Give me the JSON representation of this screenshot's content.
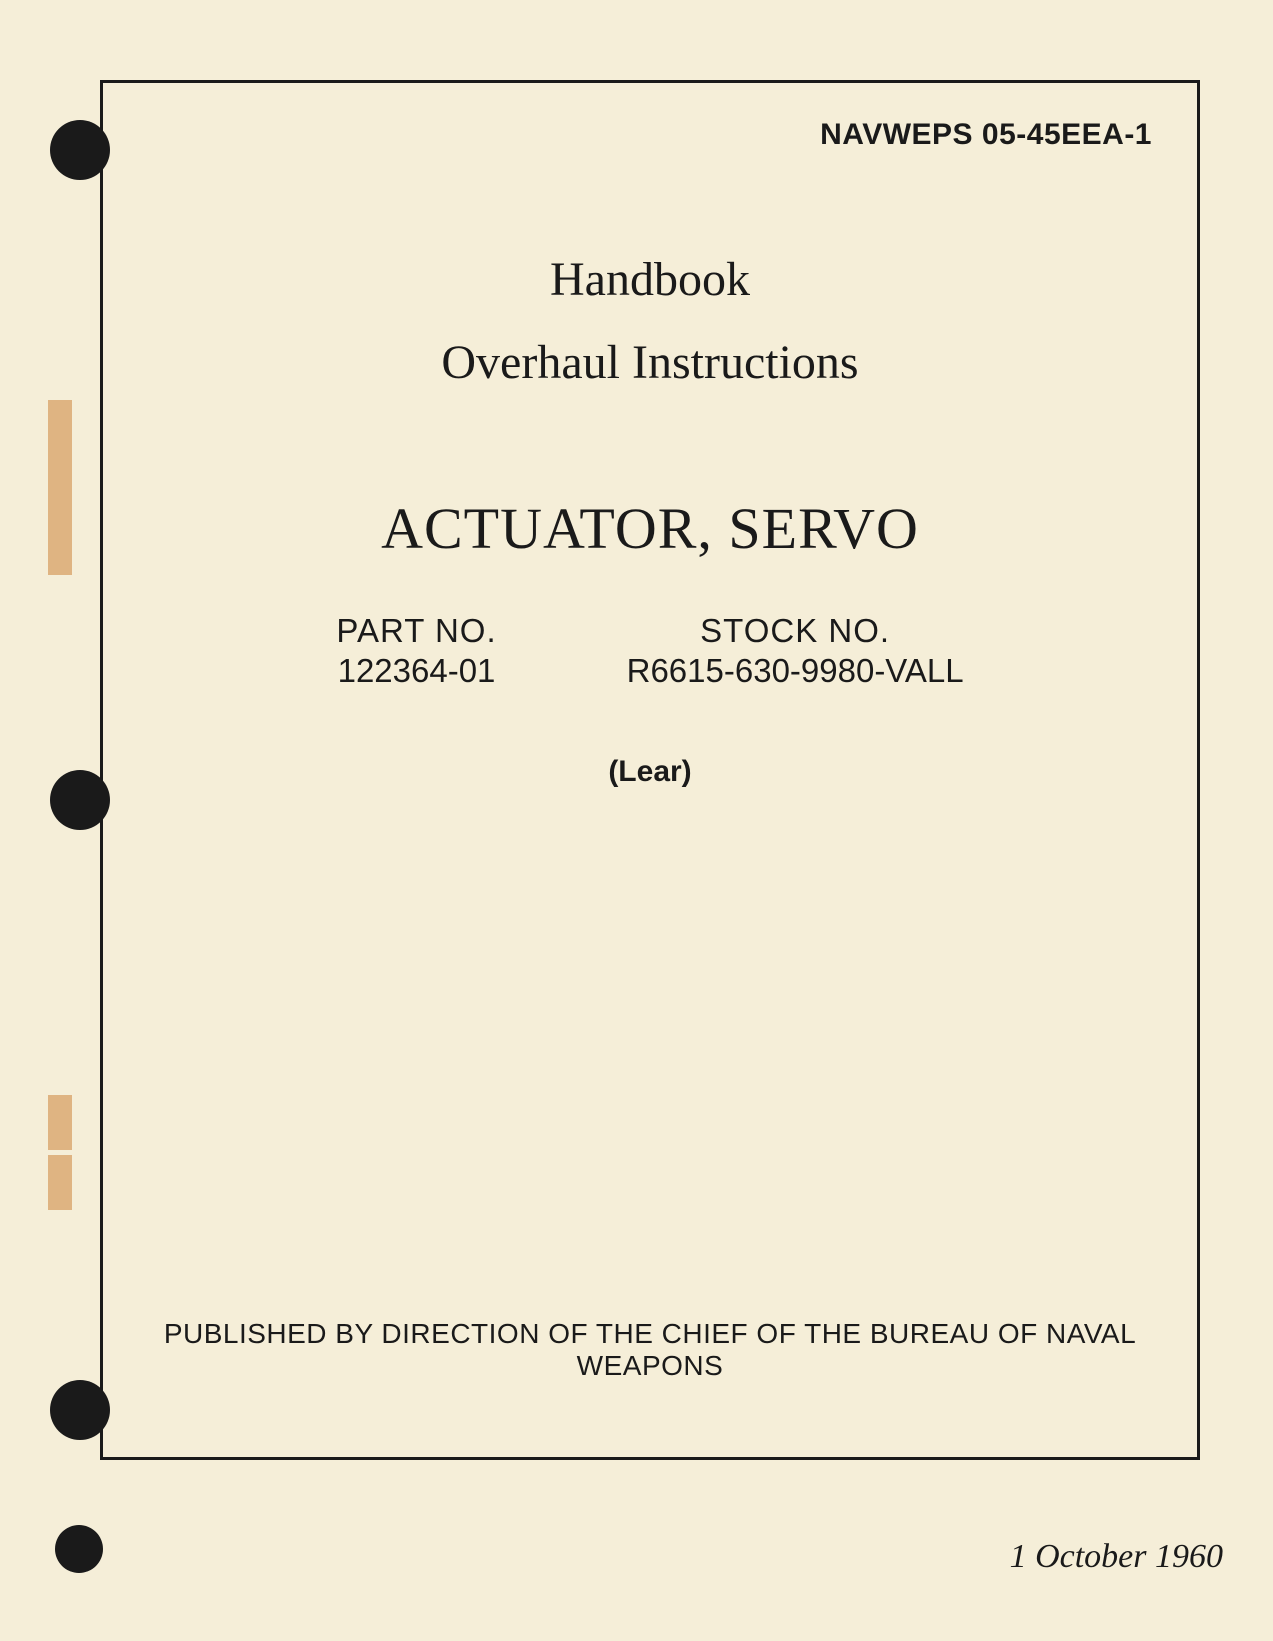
{
  "document": {
    "id": "NAVWEPS 05-45EEA-1",
    "type_label": "Handbook",
    "subtitle": "Overhaul Instructions",
    "equipment": "ACTUATOR, SERVO",
    "part_number": {
      "label": "PART NO.",
      "value": "122364-01"
    },
    "stock_number": {
      "label": "STOCK NO.",
      "value": "R6615-630-9980-VALL"
    },
    "manufacturer": "(Lear)",
    "publisher": "PUBLISHED BY DIRECTION OF THE CHIEF OF THE BUREAU OF NAVAL WEAPONS",
    "date": "1 October 1960"
  },
  "styling": {
    "page_background": "#f5eed8",
    "text_color": "#1a1a1a",
    "border_color": "#1a1a1a",
    "border_width": 3,
    "hole_punch_color": "#1a1a1a",
    "binding_mark_color": "#c9792c",
    "serif_font": "Georgia, Times New Roman",
    "sans_font": "Arial, Helvetica",
    "doc_id_size": 30,
    "handbook_size": 48,
    "equipment_size": 58,
    "part_stock_size": 33,
    "manufacturer_size": 30,
    "publisher_size": 28,
    "date_size": 34
  }
}
